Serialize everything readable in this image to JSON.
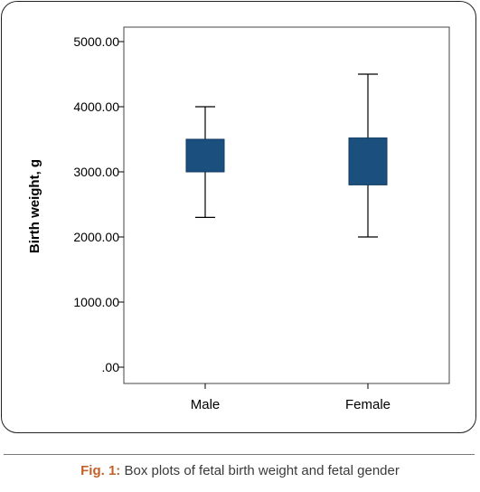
{
  "chart_data": {
    "type": "box",
    "title": "",
    "xlabel": "",
    "ylabel": "Birth weight, g",
    "ylim": [
      0,
      5000
    ],
    "yticks": [
      0,
      1000,
      2000,
      3000,
      4000,
      5000
    ],
    "ytick_labels": [
      ".00",
      "1000.00",
      "2000.00",
      "3000.00",
      "4000.00",
      "5000.00"
    ],
    "categories": [
      "Male",
      "Female"
    ],
    "box_color": "#1b4f7e",
    "boxes": [
      {
        "category": "Male",
        "whisker_low": 2300,
        "q1": 3000,
        "q3": 3500,
        "whisker_high": 4000
      },
      {
        "category": "Female",
        "whisker_low": 2000,
        "q1": 2800,
        "q3": 3520,
        "whisker_high": 4500
      }
    ],
    "grid": false,
    "legend": "none"
  },
  "caption": {
    "label": "Fig. 1:",
    "text": "Box plots of fetal birth weight and fetal gender"
  }
}
